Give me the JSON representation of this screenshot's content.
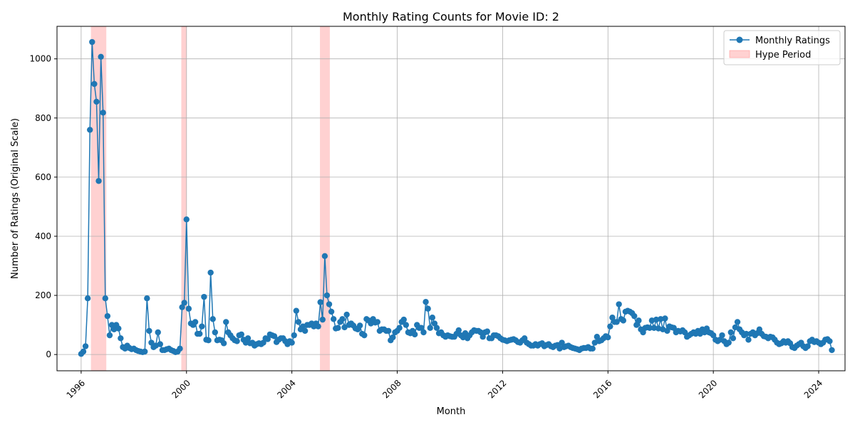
{
  "chart_data": {
    "type": "line",
    "title": "Monthly Rating Counts for Movie ID: 2",
    "xlabel": "Month",
    "ylabel": "Number of Ratings (Original Scale)",
    "xlim": [
      "1995-02-01",
      "2025-01-01"
    ],
    "ylim": [
      -55,
      1110
    ],
    "x_ticks": [
      "1996",
      "2000",
      "2004",
      "2008",
      "2012",
      "2016",
      "2020",
      "2024"
    ],
    "y_ticks": [
      0,
      200,
      400,
      600,
      800,
      1000
    ],
    "grid": true,
    "legend": "top-right",
    "series": [
      {
        "name": "Monthly Ratings",
        "color": "#1f77b4",
        "x_start": "1996-01",
        "x_step": "1 month",
        "values": [
          2,
          10,
          28,
          190,
          760,
          1057,
          915,
          855,
          587,
          1007,
          818,
          190,
          130,
          65,
          100,
          85,
          100,
          88,
          55,
          25,
          20,
          30,
          22,
          18,
          20,
          15,
          12,
          10,
          8,
          10,
          190,
          80,
          40,
          25,
          30,
          75,
          35,
          15,
          15,
          18,
          20,
          15,
          12,
          8,
          10,
          20,
          160,
          175,
          457,
          155,
          105,
          100,
          110,
          70,
          70,
          95,
          195,
          50,
          48,
          277,
          120,
          75,
          48,
          50,
          48,
          38,
          110,
          75,
          65,
          55,
          48,
          45,
          65,
          68,
          50,
          40,
          55,
          38,
          40,
          30,
          35,
          38,
          35,
          40,
          55,
          52,
          68,
          65,
          62,
          42,
          50,
          55,
          55,
          45,
          35,
          45,
          40,
          65,
          148,
          110,
          85,
          95,
          80,
          100,
          100,
          105,
          95,
          105,
          95,
          177,
          118,
          333,
          200,
          170,
          145,
          120,
          88,
          90,
          110,
          120,
          92,
          135,
          100,
          105,
          98,
          88,
          85,
          98,
          70,
          65,
          120,
          115,
          105,
          120,
          108,
          110,
          80,
          85,
          85,
          80,
          80,
          48,
          58,
          75,
          80,
          90,
          110,
          118,
          100,
          75,
          72,
          80,
          68,
          100,
          90,
          90,
          75,
          178,
          155,
          90,
          125,
          105,
          90,
          72,
          75,
          65,
          60,
          65,
          62,
          60,
          60,
          70,
          82,
          65,
          58,
          72,
          55,
          65,
          75,
          82,
          80,
          80,
          75,
          60,
          75,
          78,
          55,
          55,
          65,
          65,
          62,
          55,
          50,
          48,
          45,
          48,
          50,
          52,
          48,
          42,
          40,
          48,
          55,
          40,
          35,
          30,
          30,
          35,
          30,
          35,
          38,
          28,
          32,
          35,
          28,
          25,
          30,
          32,
          20,
          40,
          25,
          28,
          30,
          25,
          22,
          20,
          18,
          15,
          20,
          22,
          22,
          25,
          20,
          20,
          40,
          60,
          45,
          48,
          55,
          62,
          58,
          95,
          125,
          110,
          110,
          170,
          120,
          115,
          145,
          148,
          145,
          140,
          130,
          100,
          115,
          85,
          75,
          90,
          92,
          90,
          115,
          90,
          118,
          88,
          120,
          85,
          122,
          80,
          95,
          92,
          90,
          75,
          80,
          78,
          82,
          75,
          60,
          65,
          70,
          75,
          70,
          80,
          70,
          85,
          75,
          88,
          75,
          72,
          65,
          50,
          45,
          50,
          65,
          45,
          35,
          40,
          75,
          55,
          92,
          110,
          85,
          75,
          65,
          70,
          50,
          70,
          75,
          65,
          72,
          85,
          70,
          62,
          60,
          55,
          60,
          58,
          50,
          40,
          35,
          38,
          45,
          40,
          45,
          38,
          25,
          22,
          30,
          35,
          40,
          28,
          22,
          28,
          45,
          50,
          42,
          45,
          40,
          35,
          40,
          50,
          52,
          45,
          15
        ]
      }
    ],
    "shaded_regions": {
      "name": "Hype Period",
      "color": "#ff9999",
      "opacity": 0.45,
      "ranges": [
        [
          "1996-05-15",
          "1996-12-15"
        ],
        [
          "1999-10-20",
          "2000-01-05"
        ],
        [
          "2005-01-25",
          "2005-06-10"
        ]
      ]
    }
  }
}
